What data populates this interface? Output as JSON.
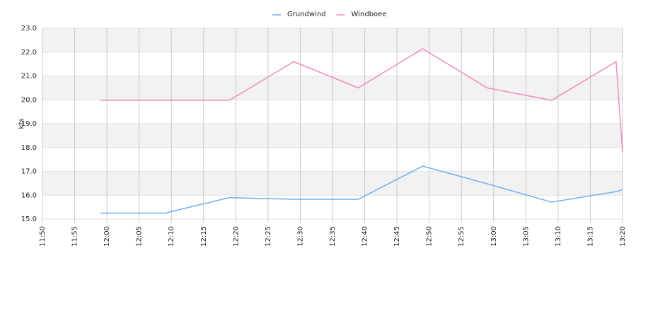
{
  "chart_data": {
    "type": "line",
    "y_label": "kts",
    "grid": true,
    "legend": "top",
    "xlim": [
      "11:50",
      "13:20"
    ],
    "xticks": [
      "11:50",
      "11:55",
      "12:00",
      "12:05",
      "12:10",
      "12:15",
      "12:20",
      "12:25",
      "12:30",
      "12:35",
      "12:40",
      "12:45",
      "12:50",
      "12:55",
      "13:00",
      "13:05",
      "13:10",
      "13:15",
      "13:20"
    ],
    "ylim": [
      15,
      23
    ],
    "yticks": [
      {
        "value": 15,
        "label": "15.0"
      },
      {
        "value": 16,
        "label": "16.0"
      },
      {
        "value": 17,
        "label": "17.0"
      },
      {
        "value": 18,
        "label": "18.0"
      },
      {
        "value": 19,
        "label": "19.0"
      },
      {
        "value": 20,
        "label": "20.0"
      },
      {
        "value": 21,
        "label": "21.0"
      },
      {
        "value": 22,
        "label": "22.0"
      },
      {
        "value": 23,
        "label": "23.0"
      }
    ],
    "x": [
      "11:59",
      "12:09",
      "12:19",
      "12:29",
      "12:39",
      "12:49",
      "12:59",
      "13:09",
      "13:19",
      "13:20"
    ],
    "series": [
      {
        "name": "Grundwind",
        "color": "#6aaef0",
        "values": [
          15.25,
          15.25,
          15.9,
          15.83,
          15.83,
          17.22,
          16.48,
          15.71,
          16.15,
          16.24
        ]
      },
      {
        "name": "Windboee",
        "color": "#f08cc0",
        "values": [
          19.98,
          19.98,
          19.98,
          21.6,
          20.5,
          22.14,
          20.5,
          19.98,
          21.6,
          17.8
        ]
      }
    ]
  }
}
